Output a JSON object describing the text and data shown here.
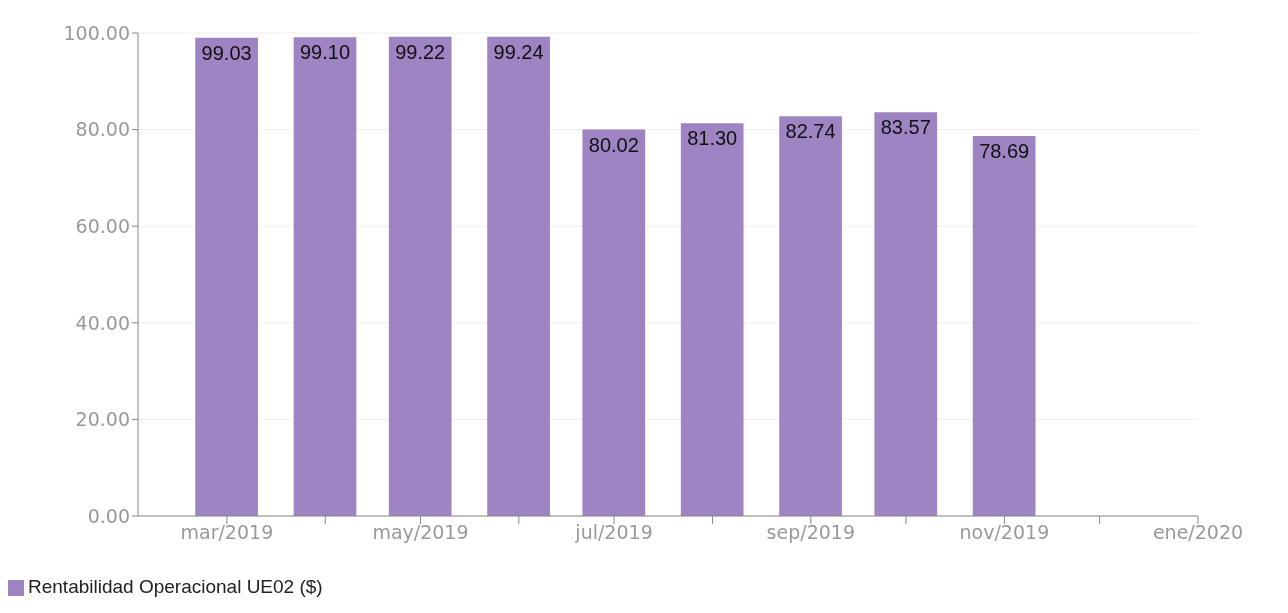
{
  "chart_data": {
    "type": "bar",
    "x": [
      "2019-03",
      "2019-04",
      "2019-05",
      "2019-06",
      "2019-07",
      "2019-08",
      "2019-09",
      "2019-10",
      "2019-11"
    ],
    "series": [
      {
        "name": "Rentabilidad Operacional UE02 ($)",
        "color": "#9f84c3",
        "values": [
          99.03,
          99.1,
          99.22,
          99.24,
          80.02,
          81.3,
          82.74,
          83.57,
          78.69
        ]
      }
    ],
    "xlim": [
      "2019-02",
      "2020-01"
    ],
    "xticks": [
      {
        "value": "2019-03",
        "label": "mar/2019"
      },
      {
        "value": "2019-04",
        "label": null
      },
      {
        "value": "2019-05",
        "label": "may/2019"
      },
      {
        "value": "2019-06",
        "label": null
      },
      {
        "value": "2019-07",
        "label": "jul/2019"
      },
      {
        "value": "2019-08",
        "label": null
      },
      {
        "value": "2019-09",
        "label": "sep/2019"
      },
      {
        "value": "2019-10",
        "label": null
      },
      {
        "value": "2019-11",
        "label": "nov/2019"
      },
      {
        "value": "2019-12",
        "label": null
      },
      {
        "value": "2020-01",
        "label": "ene/2020"
      }
    ],
    "ylim": [
      0,
      100
    ],
    "yticks": [
      {
        "value": 0,
        "label": "0.00"
      },
      {
        "value": 20,
        "label": "20.00"
      },
      {
        "value": 40,
        "label": "40.00"
      },
      {
        "value": 60,
        "label": "60.00"
      },
      {
        "value": 80,
        "label": "80.00"
      },
      {
        "value": 100,
        "label": "100.00"
      }
    ],
    "value_labels": [
      "99.03",
      "99.10",
      "99.22",
      "99.24",
      "80.02",
      "81.30",
      "82.74",
      "83.57",
      "78.69"
    ],
    "grid": "y",
    "legend": "bottom left"
  }
}
